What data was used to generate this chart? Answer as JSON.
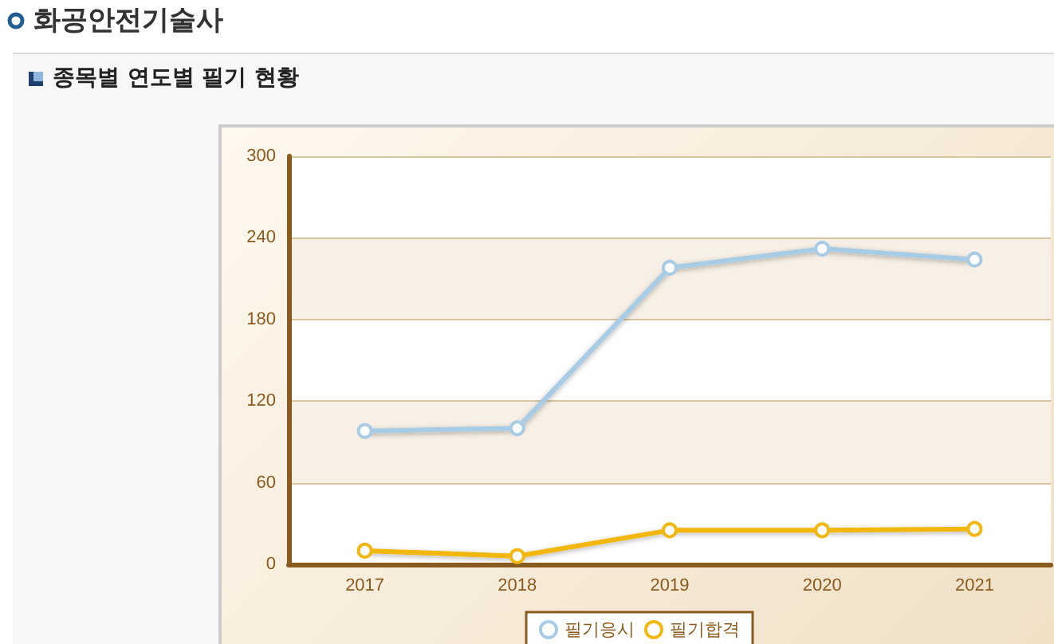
{
  "chart_data": {
    "type": "line",
    "title": "화공안전기술사",
    "subtitle": "종목별 연도별 필기 현황",
    "categories": [
      "2017",
      "2018",
      "2019",
      "2020",
      "2021"
    ],
    "series": [
      {
        "name": "필기응시",
        "color": "#a8cbe6",
        "values": [
          98,
          100,
          218,
          232,
          224
        ]
      },
      {
        "name": "필기합격",
        "color": "#f2b711",
        "values": [
          10,
          6,
          25,
          25,
          26
        ]
      }
    ],
    "ylim": [
      0,
      300
    ],
    "yticks": [
      0,
      60,
      120,
      180,
      240,
      300
    ],
    "grid": "y",
    "legend": "bottom",
    "marker": "circle",
    "line_style": "solid"
  }
}
